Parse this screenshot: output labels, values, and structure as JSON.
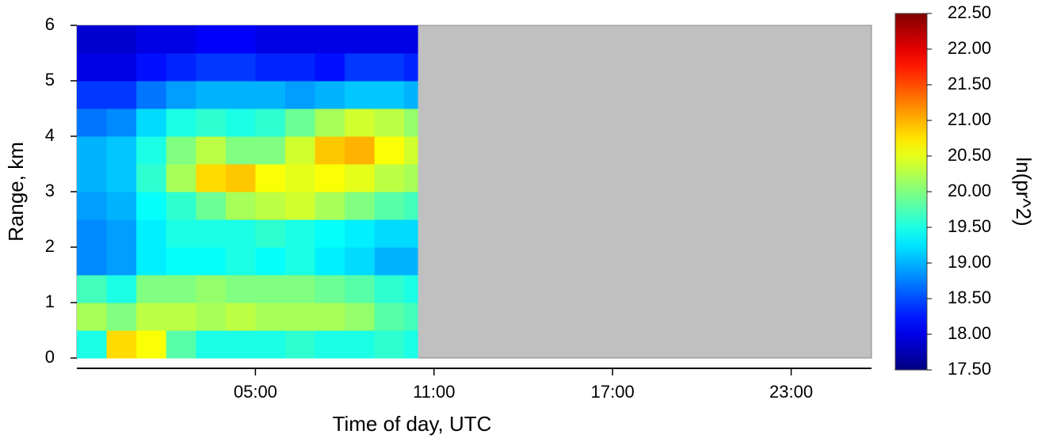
{
  "chart_data": {
    "type": "heatmap",
    "xlabel": "Time of day, UTC",
    "ylabel": "Range, km",
    "colorbar_label": "ln(pr^2)",
    "colormap": "jet",
    "missing_color": "#c0c0c0",
    "xbins": [
      -1,
      0,
      1,
      2,
      3,
      4,
      5,
      6,
      7,
      8,
      9,
      10,
      10.45
    ],
    "ybins": [
      0,
      0.5,
      1,
      1.5,
      2,
      2.5,
      3,
      3.5,
      4,
      4.5,
      5,
      5.5,
      6
    ],
    "values": [
      [
        19.5,
        20.8,
        20.6,
        19.8,
        19.5,
        19.5,
        19.5,
        19.6,
        19.5,
        19.5,
        19.6,
        19.5
      ],
      [
        20.2,
        20.0,
        20.3,
        20.3,
        20.2,
        20.3,
        20.2,
        20.2,
        20.2,
        20.1,
        19.8,
        19.7
      ],
      [
        19.7,
        19.5,
        20.0,
        20.0,
        20.1,
        20.0,
        20.0,
        20.0,
        19.9,
        19.8,
        19.6,
        19.5
      ],
      [
        18.8,
        18.9,
        19.3,
        19.4,
        19.4,
        19.5,
        19.4,
        19.5,
        19.3,
        19.2,
        19.0,
        19.0
      ],
      [
        18.8,
        18.9,
        19.3,
        19.5,
        19.5,
        19.5,
        19.6,
        19.5,
        19.4,
        19.3,
        19.2,
        19.2
      ],
      [
        18.9,
        19.0,
        19.4,
        19.6,
        19.9,
        20.2,
        20.3,
        20.4,
        20.2,
        20.0,
        19.8,
        19.7
      ],
      [
        19.0,
        19.1,
        19.6,
        20.2,
        20.8,
        20.9,
        20.6,
        20.5,
        20.6,
        20.5,
        20.3,
        20.2
      ],
      [
        19.0,
        19.1,
        19.5,
        20.0,
        20.3,
        20.0,
        20.0,
        20.4,
        20.9,
        21.0,
        20.6,
        20.4
      ],
      [
        18.7,
        18.8,
        19.2,
        19.5,
        19.6,
        19.5,
        19.6,
        19.9,
        20.2,
        20.4,
        20.3,
        20.1
      ],
      [
        18.4,
        18.4,
        18.7,
        18.9,
        19.0,
        19.0,
        19.0,
        18.9,
        19.0,
        19.1,
        19.1,
        19.0
      ],
      [
        18.0,
        18.0,
        18.2,
        18.3,
        18.4,
        18.4,
        18.3,
        18.3,
        18.2,
        18.4,
        18.4,
        18.3
      ],
      [
        17.9,
        17.9,
        18.0,
        18.0,
        18.1,
        18.1,
        18.0,
        18.0,
        18.0,
        18.0,
        18.0,
        18.0
      ]
    ],
    "xlim": [
      -1,
      25.7
    ],
    "xticks": [
      {
        "value": 5,
        "label": "05:00"
      },
      {
        "value": 11,
        "label": "11:00"
      },
      {
        "value": 17,
        "label": "17:00"
      },
      {
        "value": 23,
        "label": "23:00"
      }
    ],
    "ylim": [
      0,
      6
    ],
    "yticks": [
      0,
      1,
      2,
      3,
      4,
      5,
      6
    ],
    "clim": [
      17.5,
      22.5
    ],
    "cticks": [
      {
        "value": 17.5,
        "label": "17.50"
      },
      {
        "value": 18,
        "label": "18.00"
      },
      {
        "value": 18.5,
        "label": "18.50"
      },
      {
        "value": 19,
        "label": "19.00"
      },
      {
        "value": 19.5,
        "label": "19.50"
      },
      {
        "value": 20,
        "label": "20.00"
      },
      {
        "value": 20.5,
        "label": "20.50"
      },
      {
        "value": 21,
        "label": "21.00"
      },
      {
        "value": 21.5,
        "label": "21.50"
      },
      {
        "value": 22,
        "label": "22.00"
      },
      {
        "value": 22.5,
        "label": "22.50"
      }
    ]
  }
}
